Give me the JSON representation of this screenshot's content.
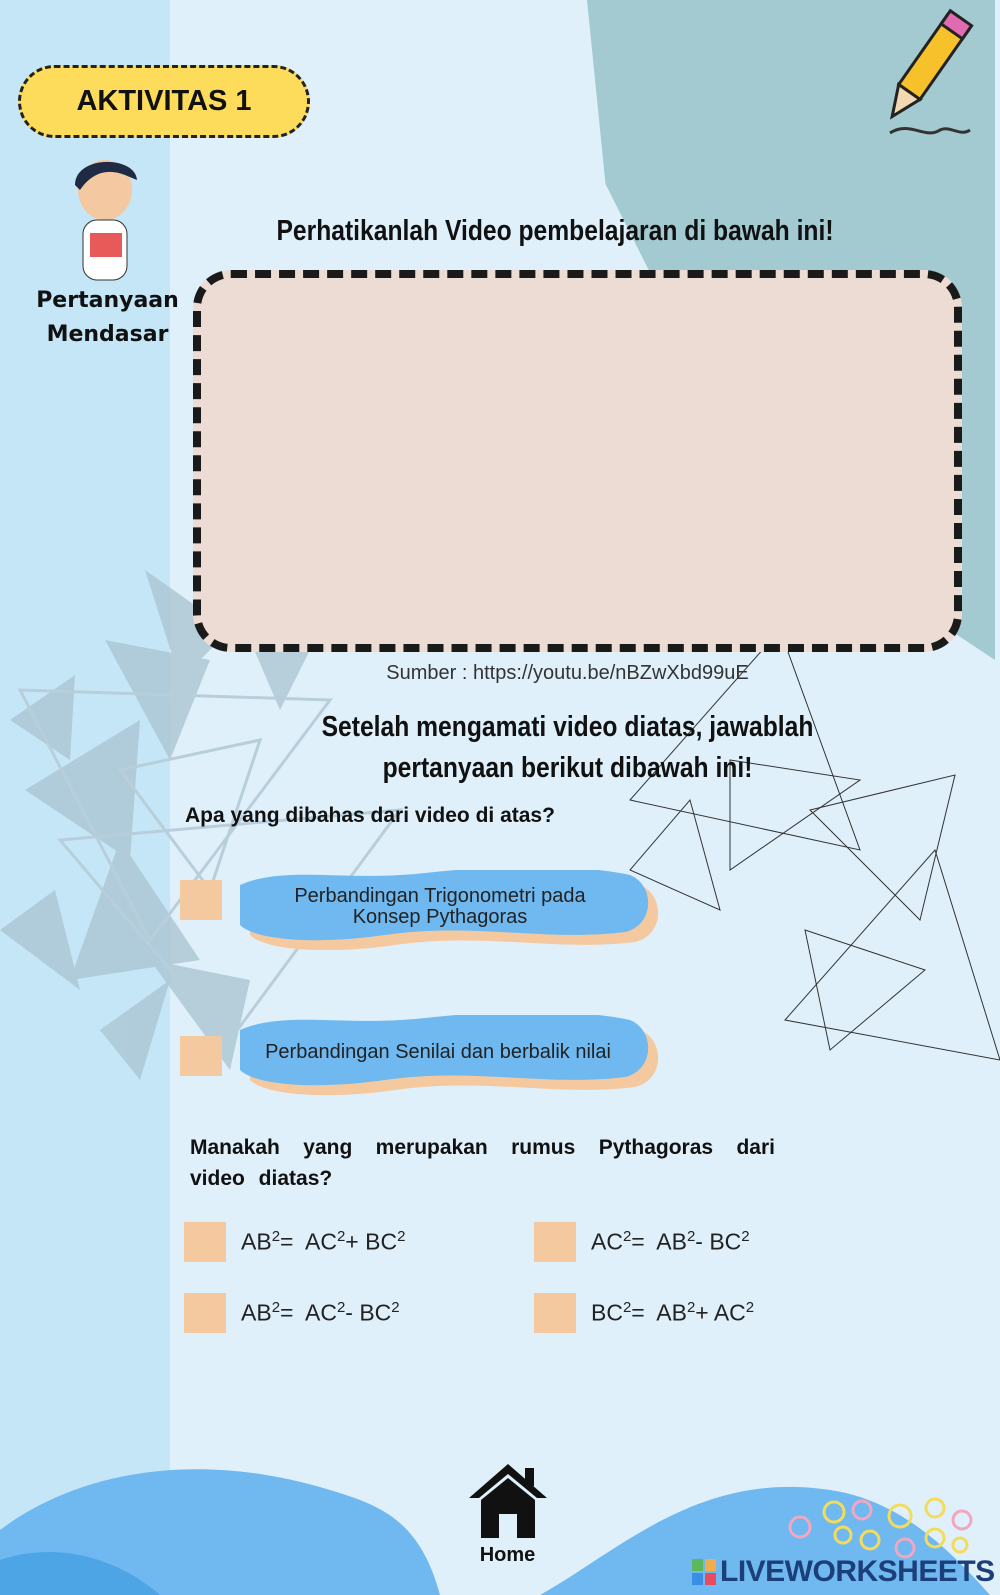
{
  "badge": "AKTIVITAS 1",
  "sidebar_label": "Pertanyaan Mendasar",
  "title": "Perhatikanlah Video pembelajaran di bawah ini!",
  "source": "Sumber : https://youtu.be/nBZwXbd99uE",
  "instruction": "Setelah mengamati video diatas, jawablah pertanyaan berikut dibawah ini!",
  "question1": {
    "text": "Apa yang dibahas dari video di atas?",
    "options": [
      "Perbandingan Trigonometri pada Konsep Pythagoras",
      "Perbandingan Senilai dan berbalik nilai"
    ]
  },
  "question2": {
    "text": "Manakah yang merupakan rumus Pythagoras dari video diatas?",
    "options": [
      {
        "lhs": "AB",
        "rhs1": "AC",
        "op": "+",
        "rhs2": "BC"
      },
      {
        "lhs": "AC",
        "rhs1": "AB",
        "op": "-",
        "rhs2": "BC"
      },
      {
        "lhs": "AB",
        "rhs1": "AC",
        "op": "-",
        "rhs2": "BC"
      },
      {
        "lhs": "BC",
        "rhs1": "AB",
        "op": "+",
        "rhs2": "AC"
      }
    ],
    "exponent": "2",
    "equals": "="
  },
  "home": "Home",
  "logo": "LIVEWORKSHEETS",
  "colors": {
    "badge": "#fddc5c",
    "checkbox": "#f5c9a0",
    "wave": "#6fb9f0",
    "video_bg": "#eddcd4"
  }
}
